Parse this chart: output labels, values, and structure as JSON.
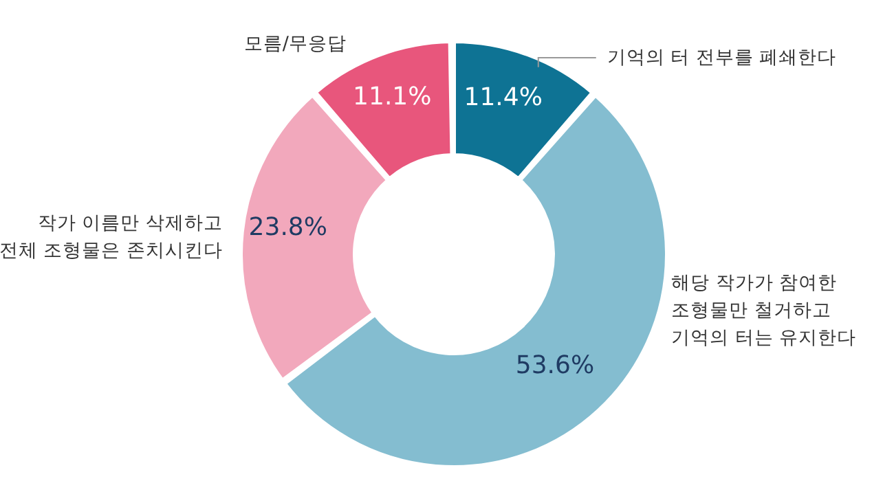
{
  "chart_data": {
    "type": "donut",
    "categories": [
      "기억의 터 전부를 폐쇄한다",
      "해당 작가가 참여한\n조형물만 철거하고\n기억의 터는 유지한다",
      "작가 이름만 삭제하고\n전체 조형물은 존치시킨다",
      "모름/무응답"
    ],
    "values": [
      11.4,
      53.6,
      23.8,
      11.1
    ],
    "colors": [
      "#0e7394",
      "#84bdd0",
      "#f2a8bc",
      "#e8567c"
    ],
    "value_labels": [
      "11.4%",
      "53.6%",
      "23.8%",
      "11.1%"
    ],
    "legend": false
  }
}
